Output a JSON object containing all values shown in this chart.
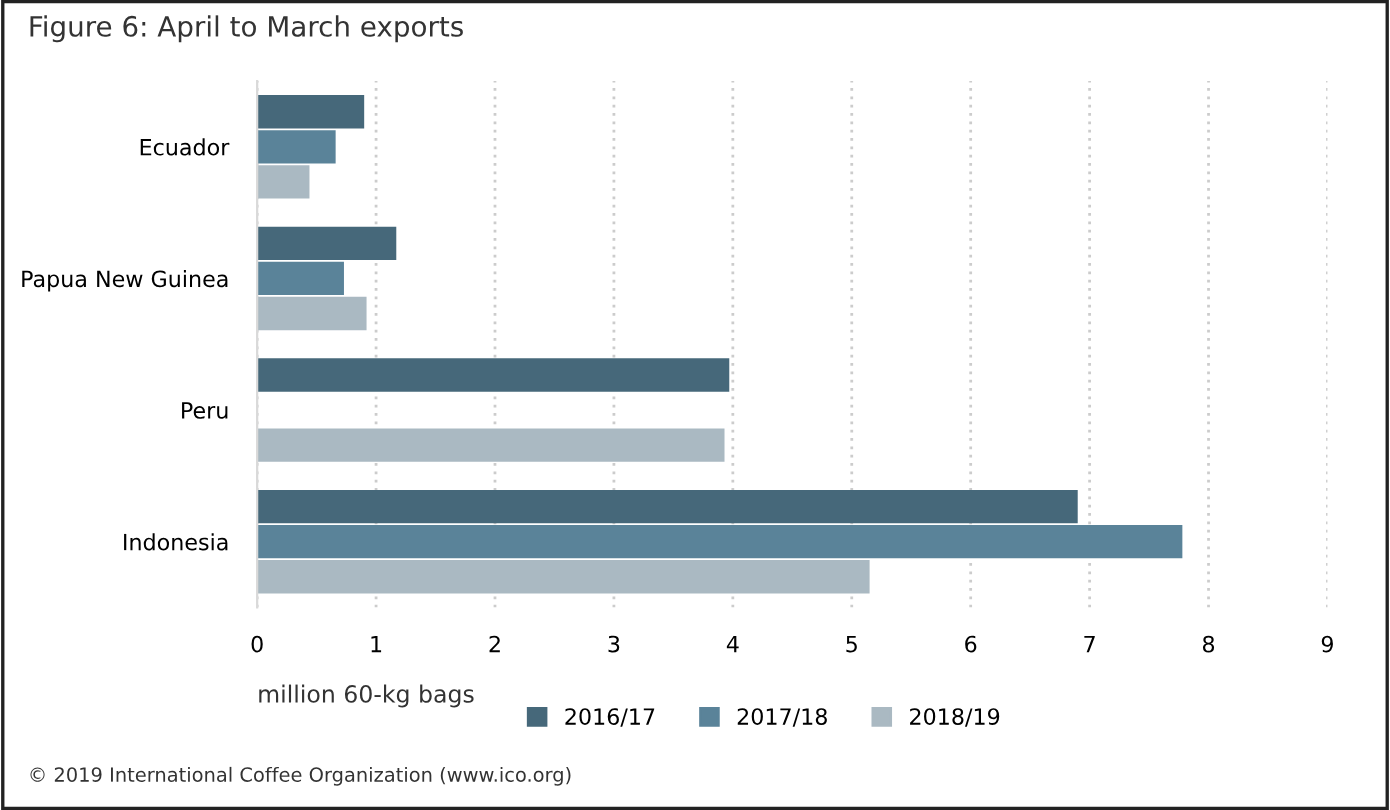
{
  "chart_data": {
    "type": "bar",
    "orientation": "horizontal",
    "title": "Figure 6: April to March exports",
    "xlabel": "million 60-kg bags",
    "categories": [
      "Ecuador",
      "Papua New Guinea",
      "Peru",
      "Indonesia"
    ],
    "series": [
      {
        "name": "2016/17",
        "color": "#46687a",
        "values": [
          0.9,
          1.17,
          3.97,
          6.9
        ]
      },
      {
        "name": "2017/18",
        "color": "#5a8399",
        "values": [
          0.66,
          0.73,
          null,
          7.78
        ]
      },
      {
        "name": "2018/19",
        "color": "#aab9c2",
        "values": [
          0.44,
          0.92,
          3.93,
          5.15
        ]
      }
    ],
    "xlim": [
      0,
      9
    ],
    "xticks": [
      0,
      1,
      2,
      3,
      4,
      5,
      6,
      7,
      8,
      9
    ],
    "grid": "x",
    "legend": "bottom",
    "annotations": [
      "© 2019 International Coffee Organization (www.ico.org)"
    ]
  }
}
